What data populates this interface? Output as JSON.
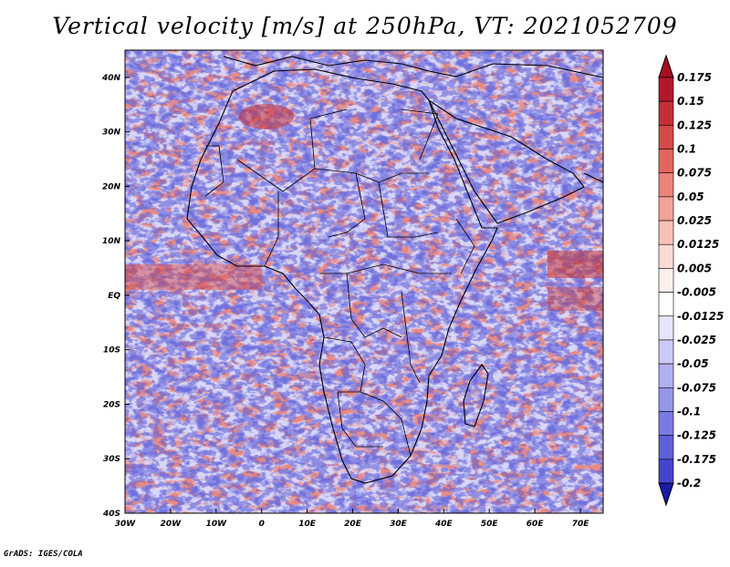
{
  "title": "Vertical velocity [m/s] at 250hPa, VT: 2021052709",
  "credit": "GrADS: IGES/COLA",
  "map": {
    "projection": "lat-lon",
    "lon_range": [
      -30,
      75
    ],
    "lat_range": [
      -40,
      45
    ],
    "lon_ticks": [
      {
        "value": -30,
        "label": "30W"
      },
      {
        "value": -20,
        "label": "20W"
      },
      {
        "value": -10,
        "label": "10W"
      },
      {
        "value": 0,
        "label": "0"
      },
      {
        "value": 10,
        "label": "10E"
      },
      {
        "value": 20,
        "label": "20E"
      },
      {
        "value": 30,
        "label": "30E"
      },
      {
        "value": 40,
        "label": "40E"
      },
      {
        "value": 50,
        "label": "50E"
      },
      {
        "value": 60,
        "label": "60E"
      },
      {
        "value": 70,
        "label": "70E"
      }
    ],
    "lat_ticks": [
      {
        "value": 40,
        "label": "40N"
      },
      {
        "value": 30,
        "label": "30N"
      },
      {
        "value": 20,
        "label": "20N"
      },
      {
        "value": 10,
        "label": "10N"
      },
      {
        "value": 0,
        "label": "EQ"
      },
      {
        "value": -10,
        "label": "10S"
      },
      {
        "value": -20,
        "label": "20S"
      },
      {
        "value": -30,
        "label": "30S"
      },
      {
        "value": -40,
        "label": "40S"
      }
    ]
  },
  "colorbar": {
    "levels": [
      {
        "label": "0.175",
        "color": "#b2182b"
      },
      {
        "label": "0.15",
        "color": "#c42f36"
      },
      {
        "label": "0.125",
        "color": "#d44a48"
      },
      {
        "label": "0.1",
        "color": "#e1665f"
      },
      {
        "label": "0.075",
        "color": "#eb8479"
      },
      {
        "label": "0.05",
        "color": "#f2a296"
      },
      {
        "label": "0.025",
        "color": "#f7c1b6"
      },
      {
        "label": "0.0125",
        "color": "#fbdcd4"
      },
      {
        "label": "0.005",
        "color": "#fdf0ec"
      },
      {
        "label": "-0.005",
        "color": "#ffffff"
      },
      {
        "label": "-0.0125",
        "color": "#e5e5fb"
      },
      {
        "label": "-0.025",
        "color": "#cacaf6"
      },
      {
        "label": "-0.05",
        "color": "#b0b0f0"
      },
      {
        "label": "-0.075",
        "color": "#9595ea"
      },
      {
        "label": "-0.1",
        "color": "#7a7ae2"
      },
      {
        "label": "-0.125",
        "color": "#5f5fd8"
      },
      {
        "label": "-0.175",
        "color": "#4545cc"
      },
      {
        "label": "-0.2",
        "color": "#2b2bbd"
      }
    ],
    "top_color": "#a50f1f",
    "bottom_color": "#1a1aa8"
  }
}
